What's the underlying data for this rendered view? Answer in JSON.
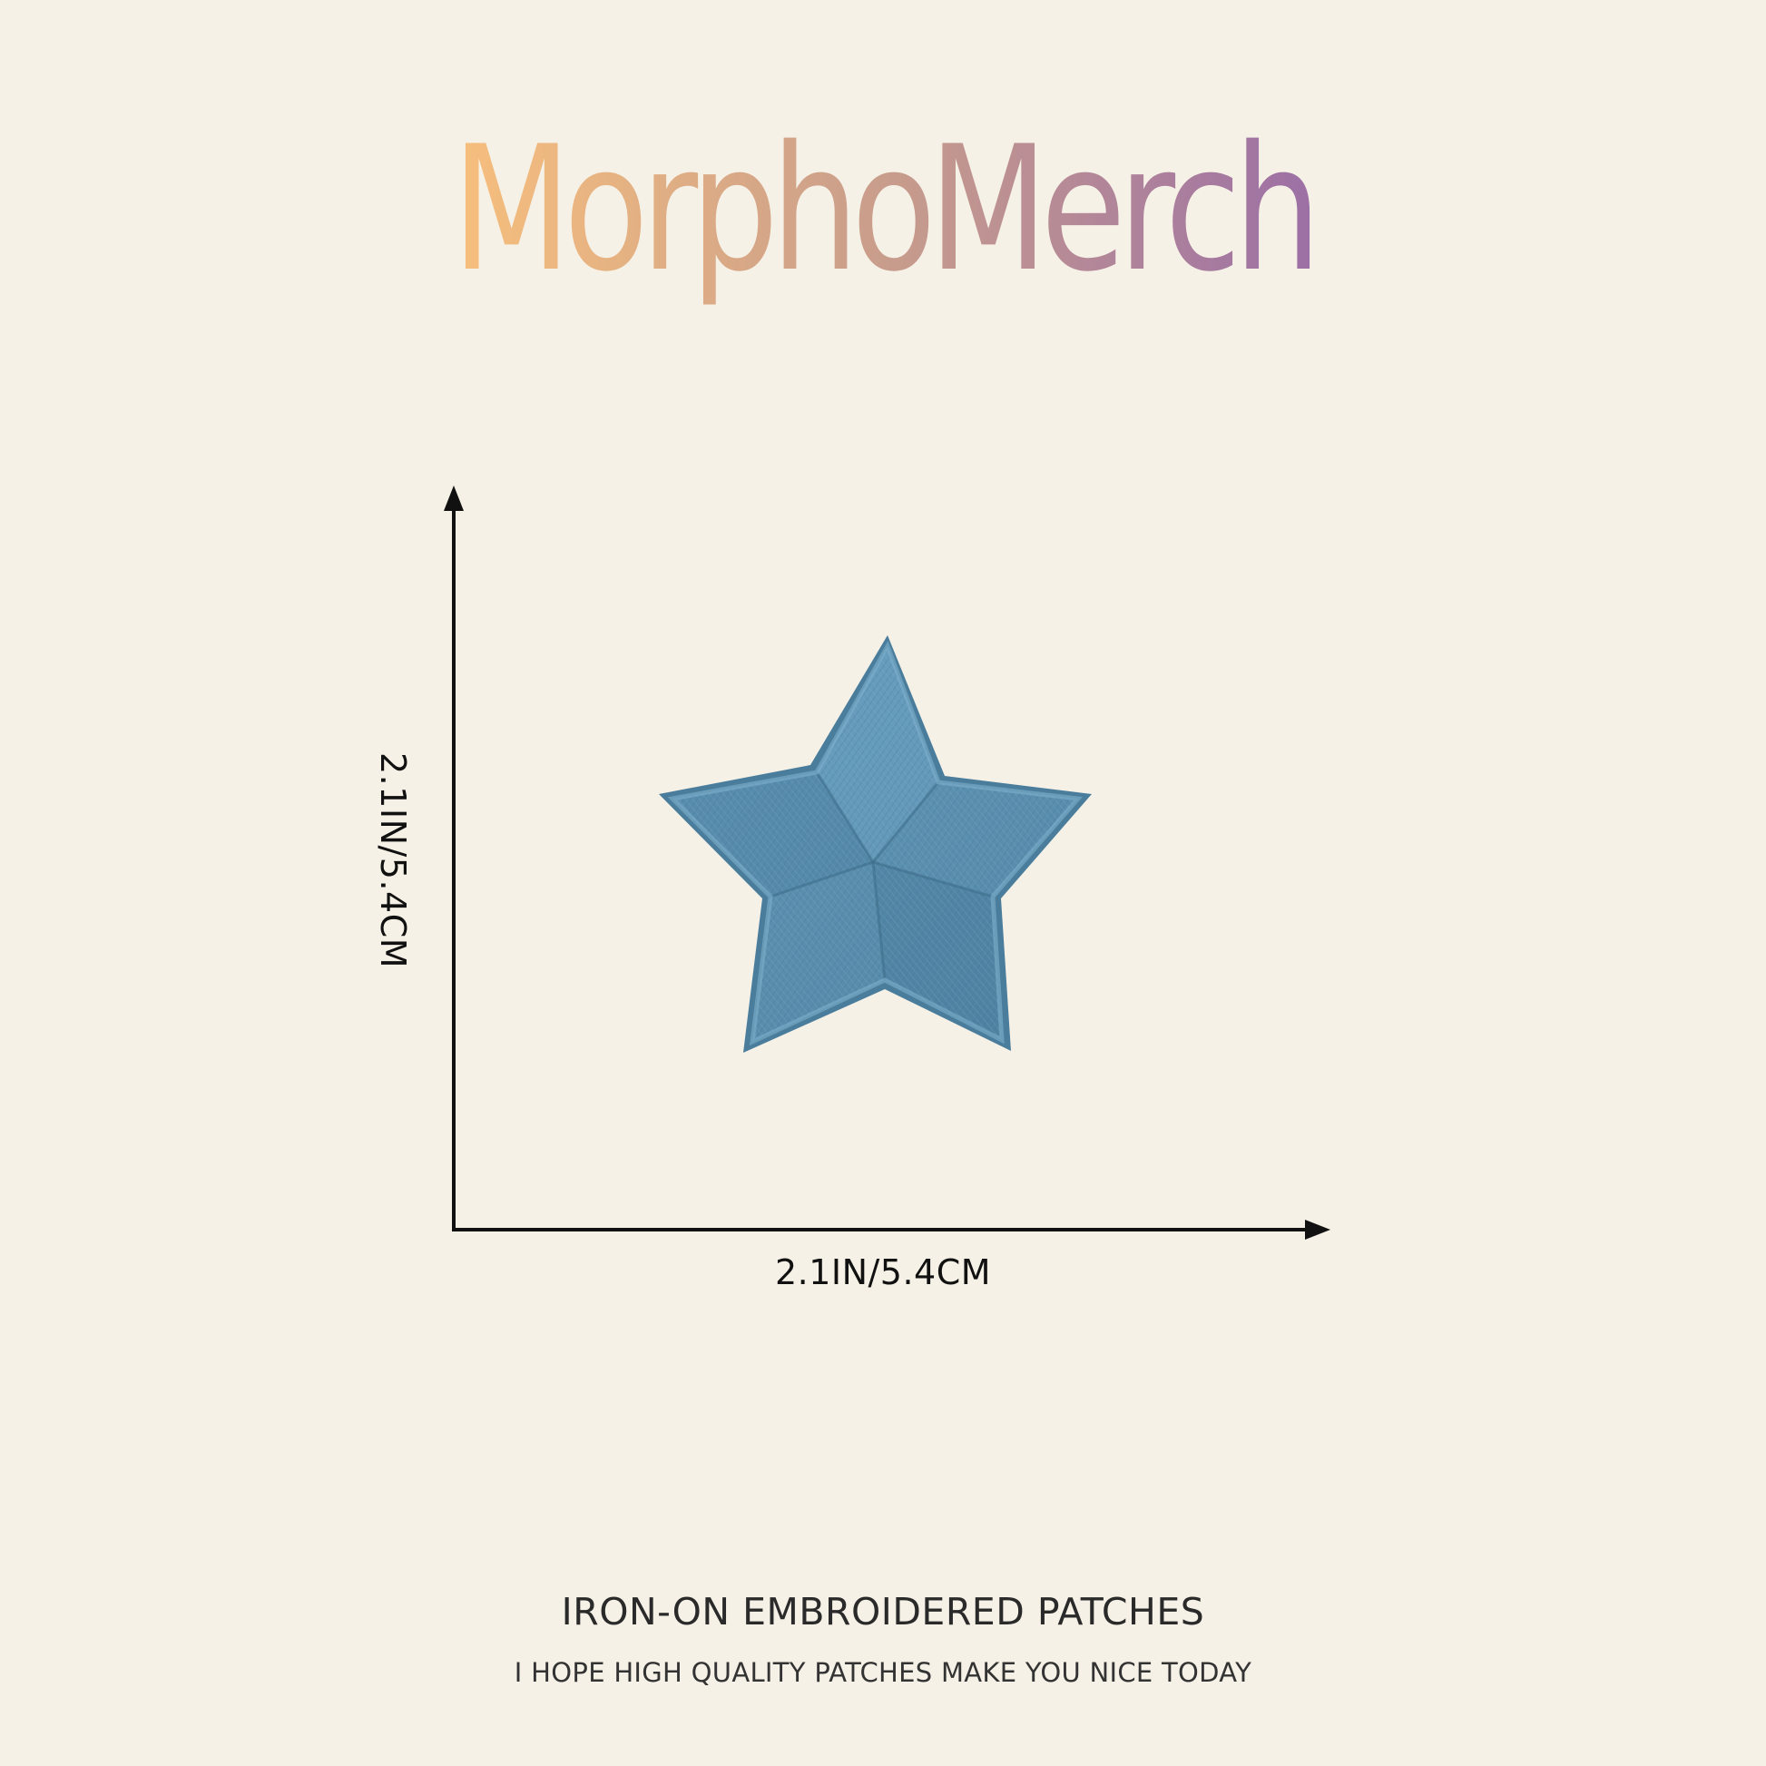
{
  "brand": {
    "name": "MorphoMerch",
    "gradient": [
      "#f6be7d",
      "#c79c8c",
      "#9b6ea6"
    ]
  },
  "product_image": {
    "icon": "star-patch-icon",
    "color": "#5b8fae"
  },
  "dimensions": {
    "height_label": "2.1IN/5.4CM",
    "width_label": "2.1IN/5.4CM"
  },
  "footer": {
    "title": "IRON-ON EMBROIDERED PATCHES",
    "subtitle": "I HOPE HIGH QUALITY PATCHES MAKE YOU NICE TODAY"
  },
  "colors": {
    "background": "#f6f1e6",
    "arrow": "#111111"
  }
}
